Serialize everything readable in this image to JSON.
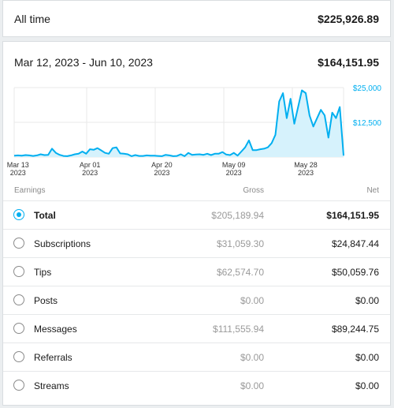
{
  "alltime": {
    "label": "All time",
    "value": "$225,926.89"
  },
  "period": {
    "range": "Mar 12, 2023 - Jun 10, 2023",
    "total": "$164,151.95"
  },
  "columns": {
    "earnings": "Earnings",
    "gross": "Gross",
    "net": "Net"
  },
  "rows": [
    {
      "label": "Total",
      "gross": "$205,189.94",
      "net": "$164,151.95",
      "selected": true
    },
    {
      "label": "Subscriptions",
      "gross": "$31,059.30",
      "net": "$24,847.44",
      "selected": false
    },
    {
      "label": "Tips",
      "gross": "$62,574.70",
      "net": "$50,059.76",
      "selected": false
    },
    {
      "label": "Posts",
      "gross": "$0.00",
      "net": "$0.00",
      "selected": false
    },
    {
      "label": "Messages",
      "gross": "$111,555.94",
      "net": "$89,244.75",
      "selected": false
    },
    {
      "label": "Referrals",
      "gross": "$0.00",
      "net": "$0.00",
      "selected": false
    },
    {
      "label": "Streams",
      "gross": "$0.00",
      "net": "$0.00",
      "selected": false
    }
  ],
  "chart_data": {
    "type": "area",
    "y_ticks": [
      {
        "value": 25000,
        "label": "$25,000"
      },
      {
        "value": 12500,
        "label": "$12,500"
      }
    ],
    "ylim": [
      0,
      25000
    ],
    "x_ticks": [
      {
        "index": 1,
        "label": [
          "Mar 13",
          "2023"
        ]
      },
      {
        "index": 20,
        "label": [
          "Apr 01",
          "2023"
        ]
      },
      {
        "index": 39,
        "label": [
          "Apr 20",
          "2023"
        ]
      },
      {
        "index": 58,
        "label": [
          "May 09",
          "2023"
        ]
      },
      {
        "index": 77,
        "label": [
          "May 28",
          "2023"
        ]
      }
    ],
    "values": [
      500,
      600,
      500,
      700,
      600,
      400,
      600,
      1000,
      700,
      800,
      3000,
      1500,
      800,
      400,
      300,
      600,
      1000,
      1200,
      2000,
      1200,
      2800,
      2600,
      3200,
      2400,
      1500,
      1200,
      3200,
      3500,
      1300,
      1200,
      1000,
      300,
      700,
      400,
      400,
      600,
      500,
      500,
      400,
      300,
      800,
      600,
      300,
      400,
      1000,
      300,
      1500,
      800,
      900,
      1000,
      800,
      1200,
      700,
      1200,
      1200,
      1800,
      900,
      700,
      1500,
      500,
      2000,
      3500,
      6000,
      2500,
      2500,
      2800,
      3000,
      3500,
      5000,
      8000,
      20000,
      23000,
      14000,
      21000,
      12000,
      18000,
      24000,
      23000,
      15000,
      11000,
      14000,
      17000,
      15000,
      7000,
      16000,
      14000,
      18000,
      500
    ]
  },
  "colors": {
    "accent": "#00aff0",
    "fill": "#d6f2fc",
    "grid": "#e8e8e8"
  }
}
